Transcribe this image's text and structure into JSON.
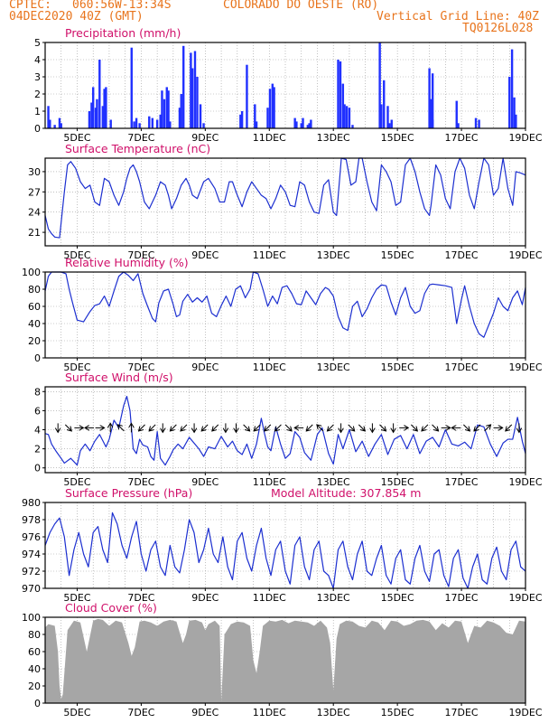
{
  "header": {
    "source": "CPTEC:",
    "coords": "060:56W-13:34S",
    "location": "COLORADO DO OESTE (RO)",
    "date": "04DEC2020 40Z (GMT)",
    "grid_note": "Vertical Grid Line: 40Z",
    "code": "TQ0126L028"
  },
  "x_ticks": [
    "5DEC",
    "7DEC",
    "9DEC",
    "11DEC",
    "13DEC",
    "15DEC",
    "17DEC",
    "19DEC"
  ],
  "chart_data": [
    {
      "type": "bar",
      "title": "Precipitation (mm/h)",
      "ylim": [
        0,
        5
      ],
      "yticks": [
        0,
        1,
        2,
        3,
        4,
        5
      ],
      "color": "#2030ff",
      "x": [
        4.1,
        4.15,
        4.3,
        4.45,
        4.5,
        5.38,
        5.45,
        5.5,
        5.58,
        5.62,
        5.7,
        5.8,
        5.85,
        5.9,
        6.05,
        6.7,
        6.78,
        6.85,
        6.95,
        7.25,
        7.35,
        7.5,
        7.6,
        7.65,
        7.72,
        7.8,
        7.85,
        7.9,
        8.2,
        8.25,
        8.32,
        8.55,
        8.6,
        8.68,
        8.75,
        8.85,
        8.95,
        10.1,
        10.15,
        10.3,
        10.55,
        10.6,
        10.95,
        11.02,
        11.1,
        11.15,
        11.8,
        11.85,
        12.0,
        12.05,
        12.2,
        12.25,
        12.3,
        13.15,
        13.22,
        13.3,
        13.35,
        13.42,
        13.5,
        13.6,
        14.45,
        14.5,
        14.58,
        14.7,
        14.75,
        14.82,
        16.0,
        16.05,
        16.1,
        16.1,
        16.85,
        16.9,
        17.45,
        17.55,
        18.5,
        18.58,
        18.65,
        18.7
      ],
      "values": [
        1.3,
        0.5,
        0.2,
        0.6,
        0.3,
        1.0,
        1.5,
        2.4,
        1.2,
        1.7,
        4.0,
        1.3,
        2.3,
        2.4,
        0.5,
        4.7,
        0.4,
        0.6,
        0.3,
        0.7,
        0.6,
        0.5,
        0.8,
        2.2,
        1.7,
        2.4,
        2.2,
        0.4,
        1.2,
        2.0,
        4.8,
        4.4,
        3.5,
        4.5,
        3.0,
        1.4,
        0.3,
        0.8,
        1.0,
        3.7,
        1.4,
        0.4,
        1.2,
        2.3,
        2.6,
        2.4,
        0.6,
        0.4,
        0.3,
        0.6,
        0.2,
        0.3,
        0.5,
        4.0,
        3.9,
        2.6,
        1.4,
        1.3,
        1.2,
        0.2,
        5.0,
        1.4,
        2.8,
        1.3,
        0.3,
        0.5,
        3.5,
        1.7,
        0.5,
        3.2,
        1.6,
        0.3,
        0.6,
        0.5,
        3.0,
        4.6,
        1.8,
        0.8
      ]
    },
    {
      "type": "line",
      "title": "Surface Temperature (nC)",
      "ylim": [
        19,
        32
      ],
      "yticks": [
        21,
        24,
        27,
        30
      ],
      "color": "#1c2fd0",
      "x": [
        4.0,
        4.1,
        4.2,
        4.3,
        4.45,
        4.6,
        4.7,
        4.8,
        4.95,
        5.1,
        5.25,
        5.4,
        5.55,
        5.7,
        5.85,
        6.0,
        6.15,
        6.3,
        6.45,
        6.55,
        6.65,
        6.75,
        6.85,
        6.95,
        7.1,
        7.25,
        7.45,
        7.6,
        7.75,
        7.85,
        7.95,
        8.1,
        8.25,
        8.4,
        8.5,
        8.6,
        8.75,
        8.95,
        9.1,
        9.3,
        9.45,
        9.6,
        9.75,
        9.85,
        10.0,
        10.15,
        10.3,
        10.45,
        10.6,
        10.75,
        10.9,
        11.05,
        11.2,
        11.35,
        11.5,
        11.65,
        11.8,
        11.95,
        12.1,
        12.25,
        12.4,
        12.55,
        12.7,
        12.85,
        13.0,
        13.1,
        13.25,
        13.4,
        13.55,
        13.7,
        13.8,
        13.9,
        14.05,
        14.2,
        14.35,
        14.5,
        14.65,
        14.8,
        14.95,
        15.1,
        15.25,
        15.4,
        15.55,
        15.7,
        15.85,
        16.0,
        16.05,
        16.2,
        16.35,
        16.5,
        16.65,
        16.8,
        16.95,
        17.1,
        17.25,
        17.4,
        17.55,
        17.7,
        17.85,
        18.0,
        18.15,
        18.3,
        18.45,
        18.6,
        18.7,
        18.85,
        19.0
      ],
      "values": [
        23.5,
        21.5,
        20.8,
        20.3,
        20.2,
        27.0,
        31.0,
        31.5,
        30.5,
        28.5,
        27.5,
        28.0,
        25.5,
        25.0,
        29.0,
        28.5,
        26.5,
        25.0,
        27.0,
        29.0,
        30.5,
        31.0,
        30.0,
        28.5,
        25.5,
        24.5,
        26.5,
        28.5,
        28.0,
        26.5,
        24.5,
        26.0,
        28.0,
        29.0,
        28.0,
        26.5,
        26.0,
        28.5,
        29.0,
        27.5,
        25.5,
        25.5,
        28.5,
        28.5,
        26.5,
        24.8,
        27.0,
        28.5,
        27.5,
        26.5,
        26.0,
        24.5,
        26.0,
        28.0,
        27.0,
        25.0,
        24.8,
        28.5,
        28.0,
        25.5,
        24.0,
        23.8,
        28.0,
        28.8,
        24.0,
        23.5,
        32.0,
        31.8,
        28.0,
        28.5,
        32.0,
        32.0,
        28.5,
        25.5,
        24.2,
        31.0,
        30.0,
        28.5,
        25.0,
        25.5,
        31.0,
        32.0,
        30.0,
        27.0,
        24.5,
        23.5,
        25.0,
        31.0,
        29.5,
        26.0,
        24.5,
        30.0,
        32.0,
        30.5,
        26.5,
        24.5,
        28.5,
        32.0,
        31.0,
        26.5,
        27.5,
        32.0,
        27.5,
        25.0,
        30.0,
        29.8,
        29.5
      ]
    },
    {
      "type": "line",
      "title": "Relative Humidity (%)",
      "ylim": [
        0,
        100
      ],
      "yticks": [
        0,
        20,
        40,
        60,
        80,
        100
      ],
      "color": "#1c2fd0",
      "x": [
        4.0,
        4.1,
        4.2,
        4.3,
        4.5,
        4.65,
        4.75,
        4.85,
        5.0,
        5.2,
        5.4,
        5.55,
        5.7,
        5.85,
        6.0,
        6.15,
        6.3,
        6.45,
        6.6,
        6.75,
        6.9,
        7.05,
        7.2,
        7.35,
        7.45,
        7.55,
        7.7,
        7.85,
        8.0,
        8.1,
        8.2,
        8.3,
        8.45,
        8.6,
        8.75,
        8.9,
        9.05,
        9.2,
        9.35,
        9.5,
        9.65,
        9.8,
        9.95,
        10.1,
        10.25,
        10.4,
        10.5,
        10.65,
        10.8,
        10.95,
        11.1,
        11.25,
        11.4,
        11.55,
        11.7,
        11.85,
        12.0,
        12.15,
        12.3,
        12.45,
        12.6,
        12.75,
        12.85,
        13.0,
        13.15,
        13.3,
        13.45,
        13.6,
        13.75,
        13.9,
        14.05,
        14.2,
        14.35,
        14.5,
        14.65,
        14.8,
        14.95,
        15.1,
        15.25,
        15.4,
        15.55,
        15.7,
        15.85,
        16.0,
        16.1,
        16.3,
        16.5,
        16.7,
        16.85,
        17.0,
        17.1,
        17.25,
        17.4,
        17.55,
        17.7,
        17.85,
        18.0,
        18.15,
        18.3,
        18.45,
        18.6,
        18.75,
        18.9,
        19.0
      ],
      "values": [
        78,
        95,
        100,
        100,
        100,
        98,
        80,
        65,
        44,
        42,
        54,
        61,
        63,
        72,
        60,
        78,
        95,
        100,
        96,
        90,
        98,
        75,
        60,
        46,
        42,
        64,
        78,
        80,
        62,
        48,
        50,
        66,
        74,
        65,
        70,
        65,
        72,
        52,
        48,
        61,
        72,
        60,
        80,
        84,
        70,
        80,
        100,
        98,
        80,
        60,
        72,
        63,
        82,
        84,
        75,
        63,
        62,
        78,
        70,
        62,
        75,
        82,
        80,
        72,
        48,
        35,
        32,
        60,
        66,
        48,
        57,
        70,
        80,
        85,
        84,
        65,
        50,
        70,
        82,
        60,
        52,
        55,
        75,
        85,
        86,
        85,
        84,
        82,
        40,
        68,
        84,
        60,
        40,
        28,
        24,
        38,
        52,
        70,
        60,
        55,
        70,
        78,
        62,
        82
      ]
    },
    {
      "type": "line",
      "title": "Surface Wind (m/s)",
      "ylim": [
        -0.5,
        8.5
      ],
      "yticks": [
        0,
        2,
        4,
        6,
        8
      ],
      "color": "#1c2fd0",
      "arrow_y": 4.2,
      "arrow_dirs": [
        "s",
        "se",
        "e",
        "w",
        "e",
        "n",
        "nw",
        "n",
        "sw",
        "sw",
        "s",
        "sw",
        "sw",
        "s",
        "sw",
        "sw",
        "s",
        "s",
        "se",
        "sw",
        "sw",
        "sw",
        "se",
        "w",
        "sw",
        "nw",
        "sw",
        "s",
        "se",
        "se",
        "s",
        "se",
        "s",
        "e",
        "se",
        "sw",
        "se",
        "e",
        "w",
        "se",
        "sw",
        "ne",
        "e",
        "sw",
        "s"
      ],
      "x": [
        4.0,
        4.1,
        4.2,
        4.35,
        4.5,
        4.6,
        4.8,
        5.0,
        5.1,
        5.25,
        5.4,
        5.55,
        5.7,
        5.9,
        6.0,
        6.15,
        6.3,
        6.45,
        6.55,
        6.65,
        6.75,
        6.85,
        6.95,
        7.05,
        7.2,
        7.3,
        7.4,
        7.5,
        7.6,
        7.75,
        7.9,
        8.0,
        8.15,
        8.3,
        8.5,
        8.65,
        8.8,
        8.95,
        9.1,
        9.3,
        9.5,
        9.7,
        9.85,
        10.0,
        10.15,
        10.3,
        10.45,
        10.6,
        10.75,
        10.85,
        10.95,
        11.05,
        11.2,
        11.35,
        11.5,
        11.65,
        11.8,
        11.95,
        12.1,
        12.3,
        12.5,
        12.65,
        12.85,
        13.0,
        13.15,
        13.3,
        13.5,
        13.7,
        13.9,
        14.1,
        14.3,
        14.5,
        14.7,
        14.9,
        15.1,
        15.3,
        15.5,
        15.7,
        15.9,
        16.1,
        16.3,
        16.5,
        16.7,
        16.9,
        17.1,
        17.3,
        17.5,
        17.7,
        17.9,
        18.1,
        18.3,
        18.45,
        18.6,
        18.75,
        18.9,
        19.0
      ],
      "values": [
        3.6,
        3.5,
        2.5,
        1.7,
        1.0,
        0.5,
        1.0,
        0.3,
        1.8,
        2.5,
        1.8,
        2.8,
        3.5,
        2.2,
        3.0,
        5.0,
        4.2,
        6.5,
        7.5,
        6.0,
        2.0,
        1.5,
        3.0,
        2.4,
        2.2,
        1.2,
        0.8,
        3.8,
        1.0,
        0.3,
        1.2,
        1.9,
        2.5,
        2.0,
        3.2,
        2.6,
        2.0,
        1.2,
        2.2,
        2.0,
        3.3,
        2.2,
        2.8,
        1.8,
        1.4,
        2.5,
        1.0,
        2.5,
        5.2,
        3.6,
        2.2,
        1.8,
        4.3,
        2.5,
        1.0,
        1.5,
        3.8,
        3.2,
        1.6,
        0.8,
        3.5,
        4.2,
        1.5,
        0.4,
        3.5,
        2.0,
        4.0,
        1.7,
        2.8,
        1.2,
        2.5,
        3.5,
        1.4,
        3.0,
        3.4,
        2.0,
        3.5,
        1.5,
        2.8,
        3.2,
        2.2,
        4.0,
        2.5,
        2.3,
        2.7,
        2.0,
        4.5,
        4.3,
        2.5,
        1.2,
        2.6,
        3.0,
        3.0,
        5.3,
        2.8,
        1.5
      ]
    },
    {
      "type": "line",
      "title": "Surface Pressure (hPa)",
      "subtitle": "Model Altitude: 307.854  m",
      "ylim": [
        970,
        980
      ],
      "yticks": [
        970,
        972,
        974,
        976,
        978,
        980
      ],
      "color": "#1c2fd0",
      "x": [
        4.0,
        4.15,
        4.3,
        4.45,
        4.6,
        4.75,
        4.9,
        5.05,
        5.2,
        5.35,
        5.5,
        5.65,
        5.8,
        5.95,
        6.1,
        6.25,
        6.4,
        6.55,
        6.7,
        6.85,
        7.0,
        7.15,
        7.3,
        7.45,
        7.6,
        7.75,
        7.9,
        8.05,
        8.2,
        8.35,
        8.5,
        8.65,
        8.8,
        8.95,
        9.1,
        9.25,
        9.4,
        9.55,
        9.7,
        9.85,
        10.0,
        10.15,
        10.3,
        10.45,
        10.6,
        10.75,
        10.9,
        11.05,
        11.2,
        11.35,
        11.5,
        11.65,
        11.8,
        11.95,
        12.1,
        12.25,
        12.4,
        12.55,
        12.7,
        12.85,
        13.0,
        13.15,
        13.3,
        13.45,
        13.6,
        13.75,
        13.9,
        14.05,
        14.2,
        14.35,
        14.5,
        14.65,
        14.8,
        14.95,
        15.1,
        15.25,
        15.4,
        15.55,
        15.7,
        15.85,
        16.0,
        16.15,
        16.3,
        16.45,
        16.6,
        16.75,
        16.9,
        17.05,
        17.2,
        17.35,
        17.5,
        17.65,
        17.8,
        17.95,
        18.1,
        18.25,
        18.4,
        18.55,
        18.7,
        18.85,
        19.0
      ],
      "values": [
        975.0,
        976.5,
        977.5,
        978.2,
        976.0,
        971.5,
        974.5,
        976.5,
        974.0,
        972.5,
        976.5,
        977.2,
        974.5,
        973.0,
        978.8,
        977.5,
        975.0,
        973.5,
        976.0,
        977.8,
        974.0,
        972.0,
        974.5,
        975.5,
        972.5,
        971.5,
        975.0,
        972.5,
        971.8,
        974.5,
        978.0,
        976.5,
        973.0,
        974.5,
        977.0,
        974.0,
        973.0,
        976.0,
        972.5,
        971.0,
        975.5,
        976.5,
        973.5,
        972.0,
        975.0,
        977.0,
        973.5,
        971.5,
        974.5,
        975.5,
        972.0,
        970.5,
        975.0,
        976.0,
        972.5,
        971.0,
        974.5,
        975.5,
        972.0,
        971.5,
        970.0,
        974.5,
        975.5,
        972.5,
        971.0,
        974.0,
        975.5,
        972.0,
        971.5,
        973.5,
        975.0,
        971.5,
        970.5,
        973.5,
        974.5,
        971.0,
        970.5,
        973.5,
        975.0,
        972.0,
        970.8,
        974.0,
        974.5,
        971.5,
        970.2,
        973.5,
        974.5,
        971.2,
        970.0,
        972.5,
        974.0,
        971.0,
        970.5,
        973.5,
        974.8,
        972.0,
        971.0,
        974.5,
        975.5,
        972.5,
        972.0
      ]
    },
    {
      "type": "area",
      "title": "Cloud Cover (%)",
      "ylim": [
        0,
        100
      ],
      "yticks": [
        0,
        20,
        40,
        60,
        80,
        100
      ],
      "color": "#a6a6a6",
      "x": [
        4.0,
        4.1,
        4.3,
        4.4,
        4.45,
        4.5,
        4.55,
        4.7,
        4.9,
        5.1,
        5.3,
        5.5,
        5.65,
        5.8,
        6.0,
        6.2,
        6.4,
        6.6,
        6.7,
        6.8,
        6.95,
        7.1,
        7.3,
        7.5,
        7.7,
        7.9,
        8.1,
        8.3,
        8.4,
        8.5,
        8.7,
        8.9,
        9.0,
        9.1,
        9.3,
        9.45,
        9.5,
        9.6,
        9.8,
        10.0,
        10.2,
        10.4,
        10.5,
        10.6,
        10.7,
        10.8,
        11.0,
        11.2,
        11.4,
        11.6,
        11.8,
        12.0,
        12.2,
        12.4,
        12.6,
        12.8,
        12.9,
        13.0,
        13.1,
        13.2,
        13.4,
        13.6,
        13.8,
        14.0,
        14.2,
        14.4,
        14.6,
        14.8,
        15.0,
        15.2,
        15.4,
        15.6,
        15.8,
        16.0,
        16.2,
        16.4,
        16.6,
        16.8,
        17.0,
        17.2,
        17.4,
        17.6,
        17.8,
        18.0,
        18.2,
        18.4,
        18.6,
        18.8,
        19.0
      ],
      "values": [
        88,
        92,
        90,
        60,
        20,
        5,
        10,
        85,
        96,
        94,
        60,
        96,
        98,
        97,
        90,
        96,
        94,
        70,
        55,
        65,
        95,
        96,
        94,
        90,
        95,
        97,
        95,
        70,
        80,
        96,
        97,
        94,
        85,
        92,
        96,
        90,
        2,
        80,
        92,
        95,
        94,
        90,
        50,
        35,
        60,
        90,
        96,
        95,
        97,
        93,
        96,
        95,
        94,
        90,
        96,
        88,
        70,
        15,
        75,
        92,
        96,
        95,
        90,
        88,
        96,
        94,
        85,
        96,
        95,
        90,
        92,
        96,
        97,
        95,
        85,
        93,
        88,
        96,
        95,
        70,
        90,
        88,
        96,
        94,
        90,
        82,
        80,
        96,
        95
      ]
    }
  ]
}
